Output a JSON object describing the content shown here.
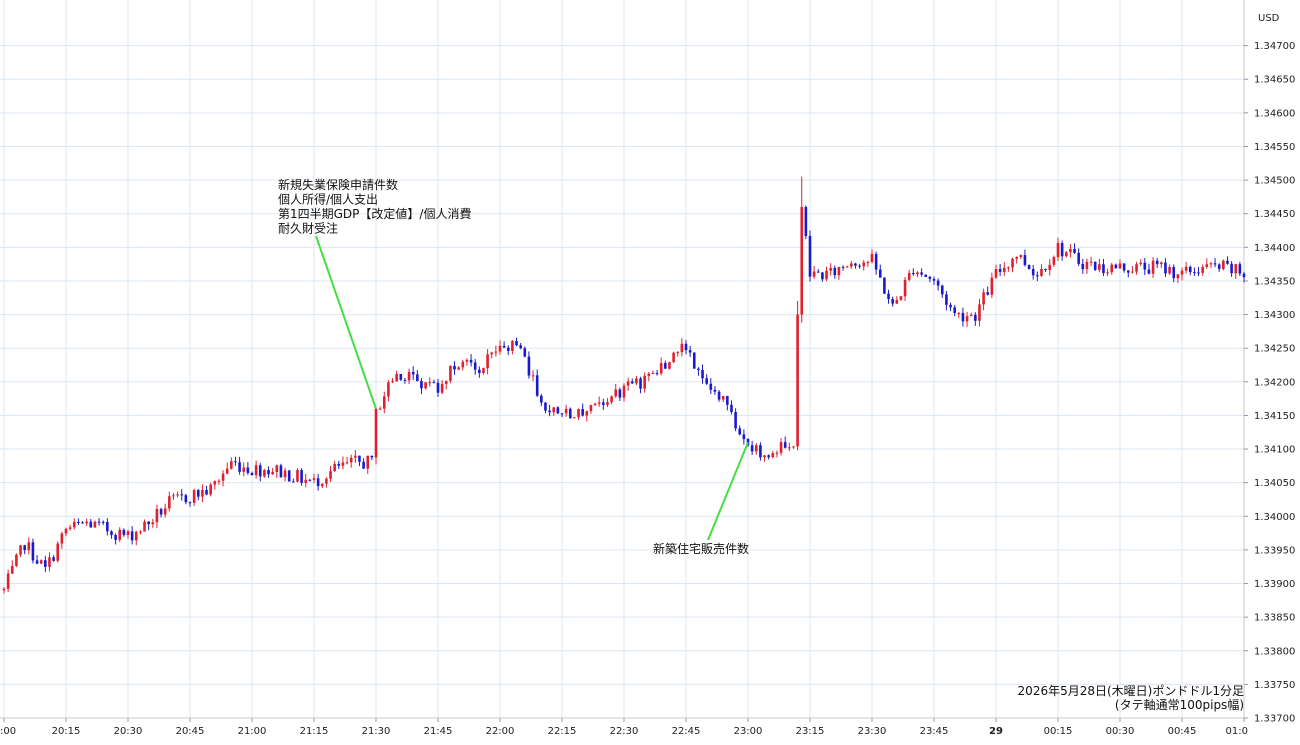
{
  "chart_data": {
    "type": "candlestick",
    "currency_label": "USD",
    "y_range": [
      1.337,
      1.3475
    ],
    "y_ticks": [
      "1.33700",
      "1.33750",
      "1.33800",
      "1.33850",
      "1.33900",
      "1.33950",
      "1.34000",
      "1.34050",
      "1.34100",
      "1.34150",
      "1.34200",
      "1.34250",
      "1.34300",
      "1.34350",
      "1.34400",
      "1.34450",
      "1.34500",
      "1.34550",
      "1.34600",
      "1.34650",
      "1.34700"
    ],
    "x_ticks": [
      ":00",
      "20:15",
      "20:30",
      "20:45",
      "21:00",
      "21:15",
      "21:30",
      "21:45",
      "22:00",
      "22:15",
      "22:30",
      "22:45",
      "23:00",
      "23:15",
      "23:30",
      "23:45",
      "29",
      "00:15",
      "00:30",
      "00:45",
      "01:0"
    ],
    "grid": true,
    "caption_line1": "2026年5月28日(木曜日)ポンドドル1分足",
    "caption_line2": "(タテ軸通常100pips幅)",
    "colors": {
      "up": "#e0202e",
      "down": "#1a1acc",
      "annotation_line": "#44dd44",
      "grid": "#dde7f0"
    },
    "annotations": [
      {
        "lines": [
          "新規失業保険申請件数",
          "個人所得/個人支出",
          "第1四半期GDP【改定値】/個人消費",
          "耐久財受注"
        ],
        "time": "21:30",
        "price": 1.3416
      },
      {
        "lines": [
          "新築住宅販売件数"
        ],
        "time": "23:00",
        "price": 1.3411
      }
    ],
    "anchors": [
      [
        "20:00",
        1.3389
      ],
      [
        "20:05",
        1.3396
      ],
      [
        "20:10",
        1.3392
      ],
      [
        "20:15",
        1.3398
      ],
      [
        "20:20",
        1.3399
      ],
      [
        "20:25",
        1.3398
      ],
      [
        "20:30",
        1.3397
      ],
      [
        "20:35",
        1.3399
      ],
      [
        "20:40",
        1.3402
      ],
      [
        "20:45",
        1.3403
      ],
      [
        "20:50",
        1.3404
      ],
      [
        "20:55",
        1.3408
      ],
      [
        "21:00",
        1.3407
      ],
      [
        "21:05",
        1.3407
      ],
      [
        "21:10",
        1.3406
      ],
      [
        "21:15",
        1.3405
      ],
      [
        "21:20",
        1.3407
      ],
      [
        "21:25",
        1.3408
      ],
      [
        "21:29",
        1.3408
      ],
      [
        "21:30",
        1.3416
      ],
      [
        "21:35",
        1.3421
      ],
      [
        "21:40",
        1.342
      ],
      [
        "21:45",
        1.3419
      ],
      [
        "21:50",
        1.3423
      ],
      [
        "21:55",
        1.3421
      ],
      [
        "22:00",
        1.3426
      ],
      [
        "22:05",
        1.3425
      ],
      [
        "22:10",
        1.3417
      ],
      [
        "22:15",
        1.3415
      ],
      [
        "22:20",
        1.3416
      ],
      [
        "22:25",
        1.3416
      ],
      [
        "22:30",
        1.3419
      ],
      [
        "22:35",
        1.342
      ],
      [
        "22:40",
        1.3423
      ],
      [
        "22:45",
        1.3425
      ],
      [
        "22:50",
        1.342
      ],
      [
        "22:55",
        1.3416
      ],
      [
        "23:00",
        1.3411
      ],
      [
        "23:05",
        1.3409
      ],
      [
        "23:10",
        1.3411
      ],
      [
        "23:11",
        1.341
      ],
      [
        "23:12",
        1.343
      ],
      [
        "23:13",
        1.3446
      ],
      [
        "23:15",
        1.3436
      ],
      [
        "23:20",
        1.3436
      ],
      [
        "23:25",
        1.3438
      ],
      [
        "23:30",
        1.3438
      ],
      [
        "23:35",
        1.3431
      ],
      [
        "23:40",
        1.3437
      ],
      [
        "23:45",
        1.3435
      ],
      [
        "23:50",
        1.343
      ],
      [
        "23:55",
        1.343
      ],
      [
        "00:00",
        1.3436
      ],
      [
        "00:05",
        1.3439
      ],
      [
        "00:10",
        1.3436
      ],
      [
        "00:15",
        1.344
      ],
      [
        "00:20",
        1.3438
      ],
      [
        "00:25",
        1.3437
      ],
      [
        "00:30",
        1.3437
      ],
      [
        "00:35",
        1.3437
      ],
      [
        "00:40",
        1.3437
      ],
      [
        "00:45",
        1.3436
      ],
      [
        "00:50",
        1.3437
      ],
      [
        "00:55",
        1.3437
      ],
      [
        "01:00",
        1.3436
      ]
    ]
  }
}
